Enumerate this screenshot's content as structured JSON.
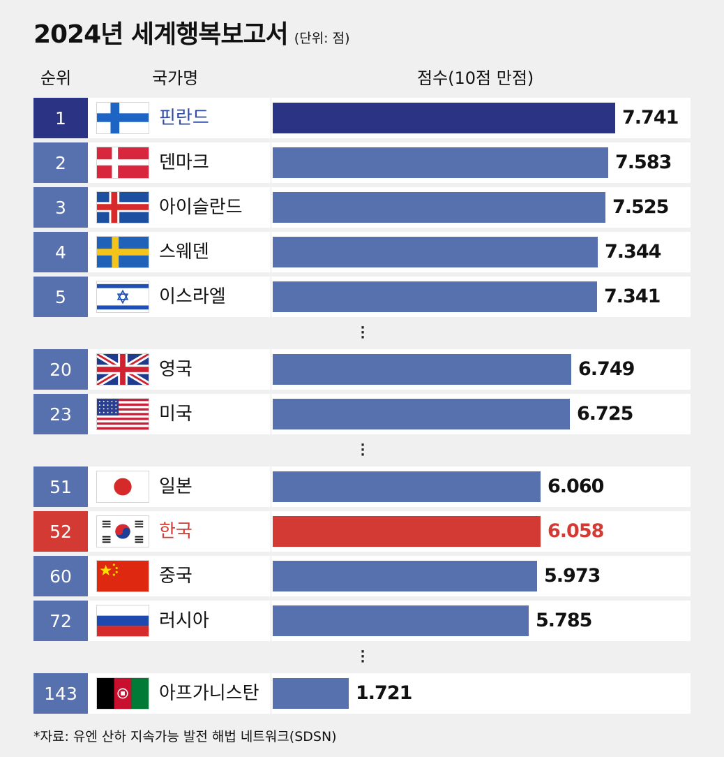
{
  "title": "2024년 세계행복보고서",
  "unit": "(단위: 점)",
  "headers": {
    "rank": "순위",
    "country": "국가명",
    "score": "점수(10점 만점)"
  },
  "colors": {
    "top": "#2a3384",
    "default": "#5770ae",
    "highlight": "#d23a33"
  },
  "chart_data": {
    "type": "bar",
    "orientation": "horizontal",
    "xlim": [
      0,
      10
    ],
    "categories": [
      "핀란드",
      "덴마크",
      "아이슬란드",
      "스웨덴",
      "이스라엘",
      "영국",
      "미국",
      "일본",
      "한국",
      "중국",
      "러시아",
      "아프가니스탄"
    ],
    "values": [
      7.741,
      7.583,
      7.525,
      7.344,
      7.341,
      6.749,
      6.725,
      6.06,
      6.058,
      5.973,
      5.785,
      1.721
    ],
    "rows": [
      {
        "rank": "1",
        "country": "핀란드",
        "score": "7.741",
        "value": 7.741,
        "flag": "finland-flag",
        "color": "top"
      },
      {
        "rank": "2",
        "country": "덴마크",
        "score": "7.583",
        "value": 7.583,
        "flag": "denmark-flag",
        "color": "default"
      },
      {
        "rank": "3",
        "country": "아이슬란드",
        "score": "7.525",
        "value": 7.525,
        "flag": "iceland-flag",
        "color": "default"
      },
      {
        "rank": "4",
        "country": "스웨덴",
        "score": "7.344",
        "value": 7.344,
        "flag": "sweden-flag",
        "color": "default"
      },
      {
        "rank": "5",
        "country": "이스라엘",
        "score": "7.341",
        "value": 7.341,
        "flag": "israel-flag",
        "color": "default"
      },
      {
        "rank": "20",
        "country": "영국",
        "score": "6.749",
        "value": 6.749,
        "flag": "uk-flag",
        "color": "default"
      },
      {
        "rank": "23",
        "country": "미국",
        "score": "6.725",
        "value": 6.725,
        "flag": "usa-flag",
        "color": "default"
      },
      {
        "rank": "51",
        "country": "일본",
        "score": "6.060",
        "value": 6.06,
        "flag": "japan-flag",
        "color": "default"
      },
      {
        "rank": "52",
        "country": "한국",
        "score": "6.058",
        "value": 6.058,
        "flag": "korea-flag",
        "color": "highlight"
      },
      {
        "rank": "60",
        "country": "중국",
        "score": "5.973",
        "value": 5.973,
        "flag": "china-flag",
        "color": "default"
      },
      {
        "rank": "72",
        "country": "러시아",
        "score": "5.785",
        "value": 5.785,
        "flag": "russia-flag",
        "color": "default"
      },
      {
        "rank": "143",
        "country": "아프가니스탄",
        "score": "1.721",
        "value": 1.721,
        "flag": "afghanistan-flag",
        "color": "default"
      }
    ]
  },
  "source": "*자료: 유엔 산하 지속가능 발전 해법 네트워크(SDSN)"
}
